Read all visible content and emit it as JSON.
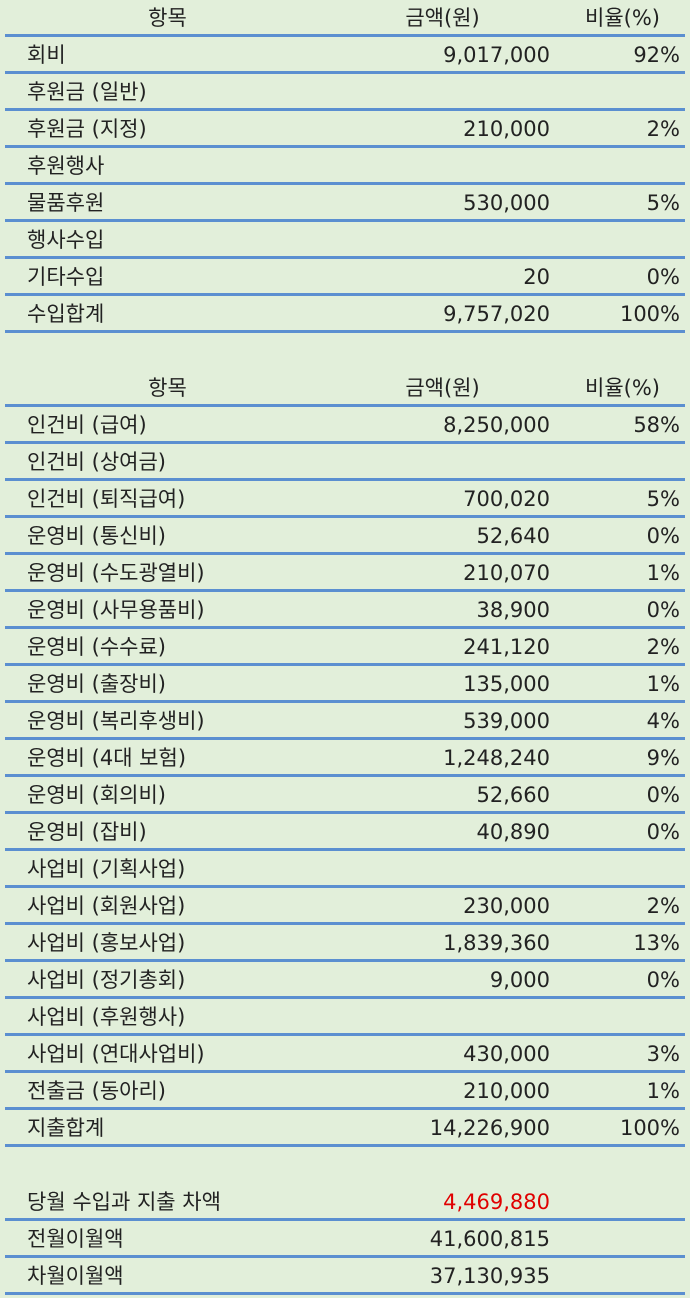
{
  "income": {
    "header": [
      "항목",
      "금액(원)",
      "비율(%)"
    ],
    "rows": [
      {
        "item": "회비",
        "amount": "9,017,000",
        "ratio": "92%"
      },
      {
        "item": "후원금 (일반)"
      },
      {
        "item": "후원금 (지정)",
        "amount": "210,000",
        "ratio": "2%"
      },
      {
        "item": "후원행사"
      },
      {
        "item": "물품후원",
        "amount": "530,000",
        "ratio": "5%"
      },
      {
        "item": "행사수입"
      },
      {
        "item": "기타수입",
        "amount": "20",
        "ratio": "0%"
      },
      {
        "item": "수입합계",
        "amount": "9,757,020",
        "ratio": "100%"
      }
    ]
  },
  "expense": {
    "header": [
      "항목",
      "금액(원)",
      "비율(%)"
    ],
    "rows": [
      {
        "item": "인건비 (급여)",
        "amount": "8,250,000",
        "ratio": "58%"
      },
      {
        "item": "인건비 (상여금)"
      },
      {
        "item": "인건비 (퇴직급여)",
        "amount": "700,020",
        "ratio": "5%"
      },
      {
        "item": "운영비 (통신비)",
        "amount": "52,640",
        "ratio": "0%"
      },
      {
        "item": "운영비 (수도광열비)",
        "amount": "210,070",
        "ratio": "1%"
      },
      {
        "item": "운영비 (사무용품비)",
        "amount": "38,900",
        "ratio": "0%"
      },
      {
        "item": "운영비 (수수료)",
        "amount": "241,120",
        "ratio": "2%"
      },
      {
        "item": "운영비 (출장비)",
        "amount": "135,000",
        "ratio": "1%"
      },
      {
        "item": "운영비 (복리후생비)",
        "amount": "539,000",
        "ratio": "4%"
      },
      {
        "item": "운영비 (4대 보험)",
        "amount": "1,248,240",
        "ratio": "9%"
      },
      {
        "item": "운영비 (회의비)",
        "amount": "52,660",
        "ratio": "0%"
      },
      {
        "item": "운영비 (잡비)",
        "amount": "40,890",
        "ratio": "0%"
      },
      {
        "item": "사업비 (기획사업)"
      },
      {
        "item": "사업비 (회원사업)",
        "amount": "230,000",
        "ratio": "2%"
      },
      {
        "item": "사업비 (홍보사업)",
        "amount": "1,839,360",
        "ratio": "13%"
      },
      {
        "item": "사업비 (정기총회)",
        "amount": "9,000",
        "ratio": "0%"
      },
      {
        "item": "사업비 (후원행사)"
      },
      {
        "item": "사업비 (연대사업비)",
        "amount": "430,000",
        "ratio": "3%"
      },
      {
        "item": "전출금 (동아리)",
        "amount": "210,000",
        "ratio": "1%"
      },
      {
        "item": "지출합계",
        "amount": "14,226,900",
        "ratio": "100%"
      }
    ]
  },
  "summary": {
    "rows": [
      {
        "item": "당월 수입과 지출 차액",
        "amount": "4,469,880",
        "highlight": true
      },
      {
        "item": "전월이월액",
        "amount": "41,600,815"
      },
      {
        "item": "차월이월액",
        "amount": "37,130,935"
      }
    ]
  }
}
